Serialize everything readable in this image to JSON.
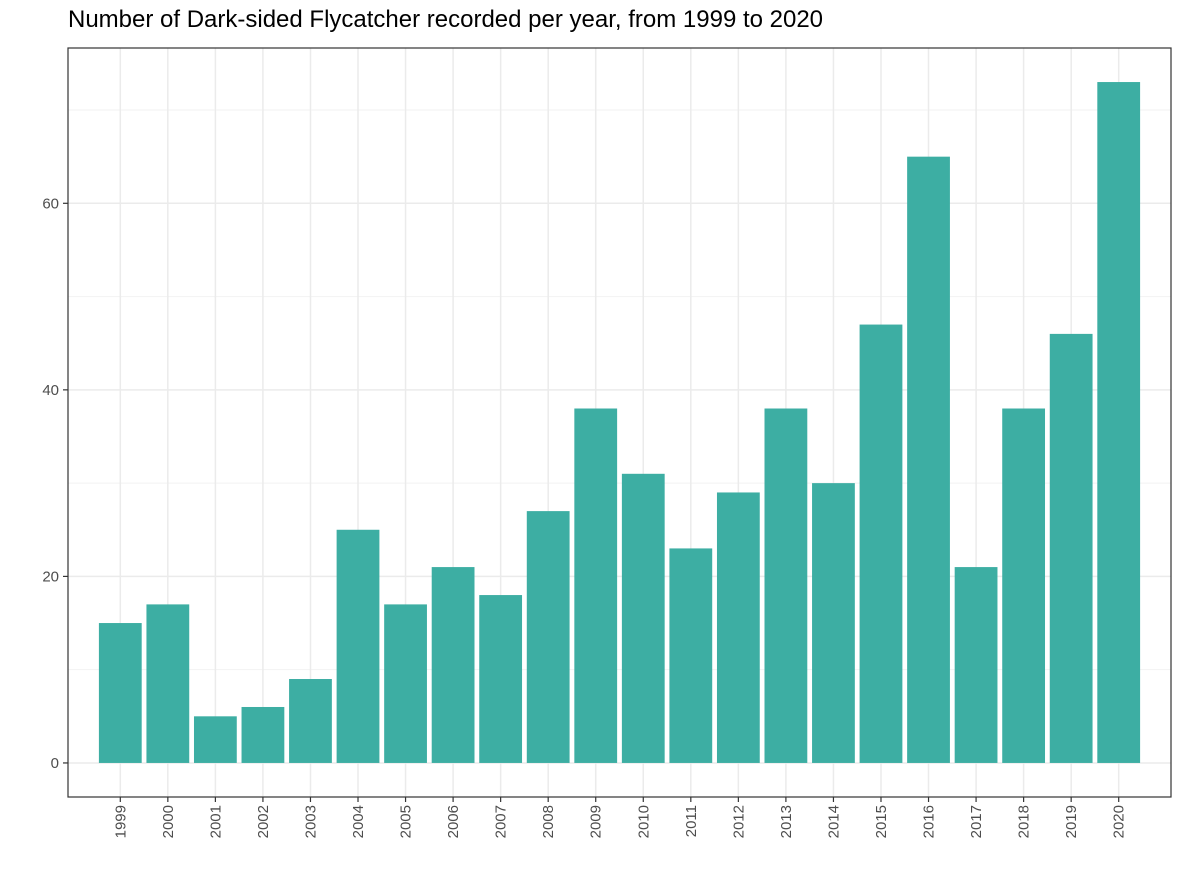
{
  "chart_data": {
    "type": "bar",
    "title": "Number of Dark-sided Flycatcher recorded per year, from 1999 to 2020",
    "xlabel": "",
    "ylabel": "",
    "categories": [
      "1999",
      "2000",
      "2001",
      "2002",
      "2003",
      "2004",
      "2005",
      "2006",
      "2007",
      "2008",
      "2009",
      "2010",
      "2011",
      "2012",
      "2013",
      "2014",
      "2015",
      "2016",
      "2017",
      "2018",
      "2019",
      "2020"
    ],
    "values": [
      15,
      17,
      5,
      6,
      9,
      25,
      17,
      21,
      18,
      27,
      38,
      31,
      23,
      29,
      38,
      30,
      47,
      65,
      21,
      38,
      46,
      73
    ],
    "ylim": [
      -3.65,
      76.65
    ],
    "yticks": [
      0,
      20,
      40,
      60
    ],
    "grid": true,
    "legend": "none",
    "bar_color": "#3daea3"
  }
}
